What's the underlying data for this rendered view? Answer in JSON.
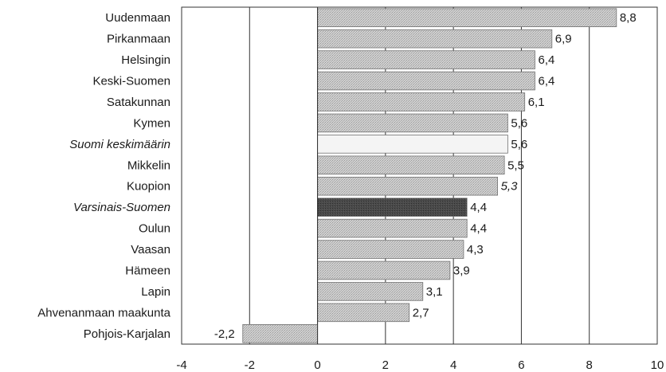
{
  "chart_data": {
    "type": "bar",
    "orientation": "horizontal",
    "title": "",
    "xlabel": "",
    "ylabel": "",
    "xlim": [
      -4,
      10
    ],
    "x_ticks": [
      -4,
      -2,
      0,
      2,
      4,
      6,
      8,
      10
    ],
    "grid": true,
    "categories": [
      "Uudenmaan",
      "Pirkanmaan",
      "Helsingin",
      "Keski-Suomen",
      "Satakunnan",
      "Kymen",
      "Suomi keskimäärin",
      "Mikkelin",
      "Kuopion",
      "Varsinais-Suomen",
      "Oulun",
      "Vaasan",
      "Hämeen",
      "Lapin",
      "Ahvenanmaan maakunta",
      "Pohjois-Karjalan"
    ],
    "values": [
      8.8,
      6.9,
      6.4,
      6.4,
      6.1,
      5.6,
      5.6,
      5.5,
      5.3,
      4.4,
      4.4,
      4.3,
      3.9,
      3.1,
      2.7,
      -2.2
    ],
    "value_labels": [
      "8,8",
      "6,9",
      "6,4",
      "6,4",
      "6,1",
      "5,6",
      "5,6",
      "5,5",
      "5,3",
      "4,4",
      "4,4",
      "4,3",
      "3,9",
      "3,1",
      "2,7",
      "-2,2"
    ],
    "italic_categories": [
      "Suomi keskimäärin",
      "Varsinais-Suomen"
    ],
    "highlight": {
      "Suomi keskimäärin": "#f4f4f4",
      "Varsinais-Suomen": "#4a4a4a"
    },
    "colors": {
      "bar_fill": "#c8c8c8",
      "bar_stroke": "#707070",
      "highlight_dark": "#4a4a4a",
      "highlight_light": "#f4f4f4",
      "gridline": "#333333",
      "frame": "#333333"
    }
  }
}
